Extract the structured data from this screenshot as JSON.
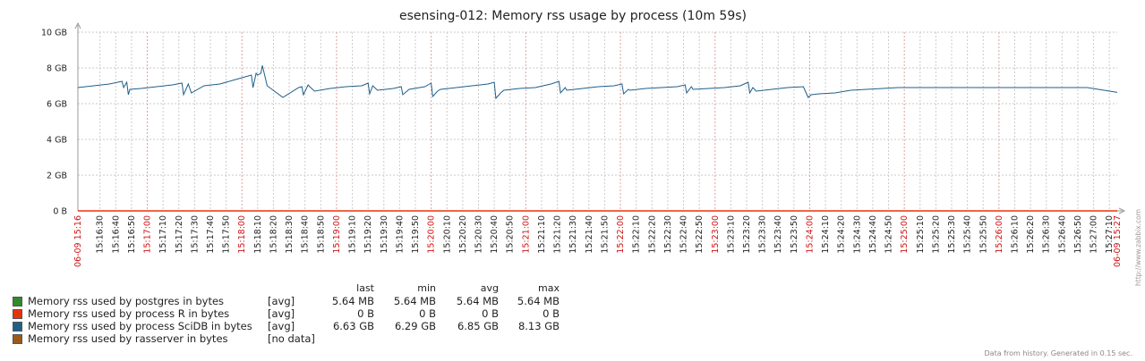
{
  "chart_data": {
    "type": "line",
    "title": "esensing-012: Memory rss usage by process (10m 59s)",
    "ylim": [
      0,
      10
    ],
    "y_unit": "GB",
    "y_ticks": [
      "0 B",
      "2 GB",
      "4 GB",
      "6 GB",
      "8 GB",
      "10 GB"
    ],
    "y_tick_values": [
      0,
      2,
      4,
      6,
      8,
      10
    ],
    "x_start_label": "06-09 15:16",
    "x_end_label": "06-09 15:27",
    "x_tick_labels": [
      "15:16:30",
      "15:16:40",
      "15:16:50",
      "15:17:00",
      "15:17:10",
      "15:17:20",
      "15:17:30",
      "15:17:40",
      "15:17:50",
      "15:18:00",
      "15:18:10",
      "15:18:20",
      "15:18:30",
      "15:18:40",
      "15:18:50",
      "15:19:00",
      "15:19:10",
      "15:19:20",
      "15:19:30",
      "15:19:40",
      "15:19:50",
      "15:20:00",
      "15:20:10",
      "15:20:20",
      "15:20:30",
      "15:20:40",
      "15:20:50",
      "15:21:00",
      "15:21:10",
      "15:21:20",
      "15:21:30",
      "15:21:40",
      "15:21:50",
      "15:22:00",
      "15:22:10",
      "15:22:20",
      "15:22:30",
      "15:22:40",
      "15:22:50",
      "15:23:00",
      "15:23:10",
      "15:23:20",
      "15:23:30",
      "15:23:40",
      "15:23:50",
      "15:24:00",
      "15:24:10",
      "15:24:20",
      "15:24:30",
      "15:24:40",
      "15:24:50",
      "15:25:00",
      "15:25:10",
      "15:25:20",
      "15:25:30",
      "15:25:40",
      "15:25:50",
      "15:26:00",
      "15:26:10",
      "15:26:20",
      "15:26:30",
      "15:26:40",
      "15:26:50",
      "15:27:00",
      "15:27:10"
    ],
    "x_tick_major": [
      "15:17:00",
      "15:18:00",
      "15:19:00",
      "15:20:00",
      "15:21:00",
      "15:22:00",
      "15:23:00",
      "15:24:00",
      "15:25:00",
      "15:26:00"
    ],
    "series": [
      {
        "name": "Memory rss used by process SciDB in bytes",
        "color": "#1f5f8b",
        "x_seconds": [
          0,
          10,
          20,
          28,
          29,
          31,
          32,
          33,
          40,
          50,
          60,
          66,
          67,
          69,
          70,
          72,
          80,
          90,
          100,
          110,
          111,
          113,
          114,
          116,
          117,
          120,
          130,
          140,
          142,
          143,
          146,
          147,
          150,
          160,
          170,
          180,
          184,
          185,
          187,
          190,
          200,
          205,
          206,
          210,
          220,
          224,
          225,
          228,
          230,
          240,
          250,
          260,
          264,
          265,
          268,
          270,
          280,
          290,
          300,
          305,
          306,
          309,
          310,
          320,
          330,
          340,
          345,
          346,
          349,
          350,
          360,
          370,
          380,
          385,
          386,
          389,
          390,
          400,
          410,
          420,
          425,
          426,
          428,
          430,
          440,
          450,
          460,
          463,
          465,
          470,
          480,
          490,
          500,
          510,
          520,
          530,
          560,
          600,
          640,
          659
        ],
        "values": [
          6.9,
          7.0,
          7.1,
          7.25,
          6.9,
          7.2,
          6.5,
          6.8,
          6.85,
          6.95,
          7.05,
          7.15,
          6.5,
          6.9,
          7.1,
          6.6,
          7.0,
          7.1,
          7.35,
          7.6,
          6.9,
          7.7,
          7.6,
          7.7,
          8.13,
          7.0,
          6.35,
          6.9,
          6.95,
          6.5,
          7.05,
          6.95,
          6.7,
          6.85,
          6.95,
          7.0,
          7.15,
          6.55,
          7.0,
          6.75,
          6.85,
          6.95,
          6.5,
          6.8,
          6.95,
          7.15,
          6.4,
          6.7,
          6.8,
          6.9,
          7.0,
          7.1,
          7.2,
          6.3,
          6.6,
          6.75,
          6.85,
          6.9,
          7.1,
          7.25,
          6.6,
          6.9,
          6.75,
          6.85,
          6.95,
          7.0,
          7.1,
          6.55,
          6.8,
          6.75,
          6.85,
          6.9,
          6.95,
          7.05,
          6.6,
          6.95,
          6.8,
          6.85,
          6.9,
          7.0,
          7.2,
          6.6,
          6.9,
          6.7,
          6.8,
          6.9,
          6.95,
          6.35,
          6.5,
          6.55,
          6.6,
          6.75,
          6.8,
          6.85,
          6.9,
          6.9,
          6.9,
          6.9,
          6.9,
          6.63
        ]
      },
      {
        "name": "Memory rss used by process R in bytes",
        "color": "#e8330a",
        "x_seconds": [
          0,
          659
        ],
        "values": [
          0,
          0
        ]
      }
    ]
  },
  "legend": {
    "headers": {
      "last": "last",
      "min": "min",
      "avg": "avg",
      "max": "max"
    },
    "items": [
      {
        "name": "Memory rss used by postgres in bytes",
        "color": "#2e8b2e",
        "fn": "[avg]",
        "last": "5.64 MB",
        "min": "5.64 MB",
        "avg": "5.64 MB",
        "max": "5.64 MB"
      },
      {
        "name": "Memory rss used by process R in bytes",
        "color": "#e8330a",
        "fn": "[avg]",
        "last": "0 B",
        "min": "0 B",
        "avg": "0 B",
        "max": "0 B"
      },
      {
        "name": "Memory rss used by process SciDB in bytes",
        "color": "#1f5f8b",
        "fn": "[avg]",
        "last": "6.63 GB",
        "min": "6.29 GB",
        "avg": "6.85 GB",
        "max": "8.13 GB"
      },
      {
        "name": "Memory rss used by rasserver in bytes",
        "color": "#9a5a1a",
        "fn": "[no data]",
        "last": "",
        "min": "",
        "avg": "",
        "max": ""
      }
    ]
  },
  "side_watermark": "http://www.zabbix.com",
  "footer": "Data from history. Generated in 0.15 sec."
}
